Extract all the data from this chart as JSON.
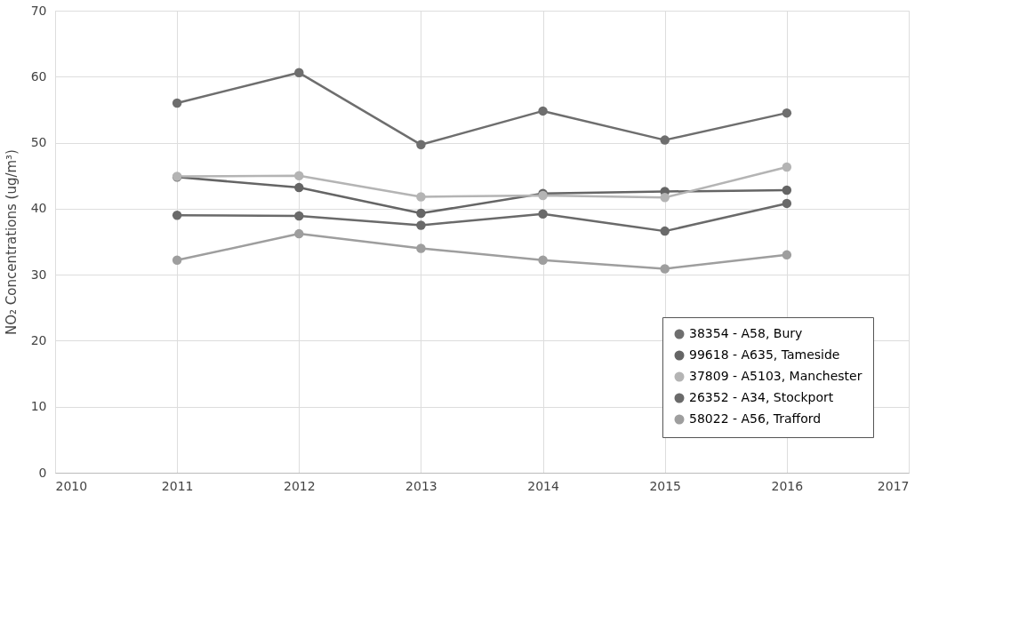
{
  "chart_data": {
    "type": "line",
    "ylabel": "NO₂ Concentrations (ug/m³)",
    "x": [
      2011,
      2012,
      2013,
      2014,
      2015,
      2016
    ],
    "series": [
      {
        "name": "38354 - A58, Bury",
        "color": "#6e6e6e",
        "values": [
          56.0,
          60.6,
          49.7,
          54.8,
          50.4,
          54.5
        ]
      },
      {
        "name": "99618 - A635, Tameside",
        "color": "#656565",
        "values": [
          44.8,
          43.2,
          39.3,
          42.3,
          42.6,
          42.8
        ]
      },
      {
        "name": "37809 - A5103, Manchester",
        "color": "#b4b4b4",
        "values": [
          44.9,
          45.0,
          41.8,
          42.0,
          41.7,
          46.3
        ]
      },
      {
        "name": "26352 - A34, Stockport",
        "color": "#6a6a6a",
        "values": [
          39.0,
          38.9,
          37.5,
          39.2,
          36.6,
          40.8
        ]
      },
      {
        "name": "58022 - A56, Trafford",
        "color": "#9e9e9e",
        "values": [
          32.2,
          36.2,
          34.0,
          32.2,
          30.9,
          33.0
        ]
      }
    ],
    "xlim": [
      2010,
      2017
    ],
    "xticks": [
      2010,
      2011,
      2012,
      2013,
      2014,
      2015,
      2016,
      2017
    ],
    "ylim": [
      0,
      70
    ],
    "yticks": [
      0,
      10,
      20,
      30,
      40,
      50,
      60,
      70
    ],
    "grid": true,
    "legend": "bottom right",
    "marker": "circle",
    "line_style": "solid"
  }
}
